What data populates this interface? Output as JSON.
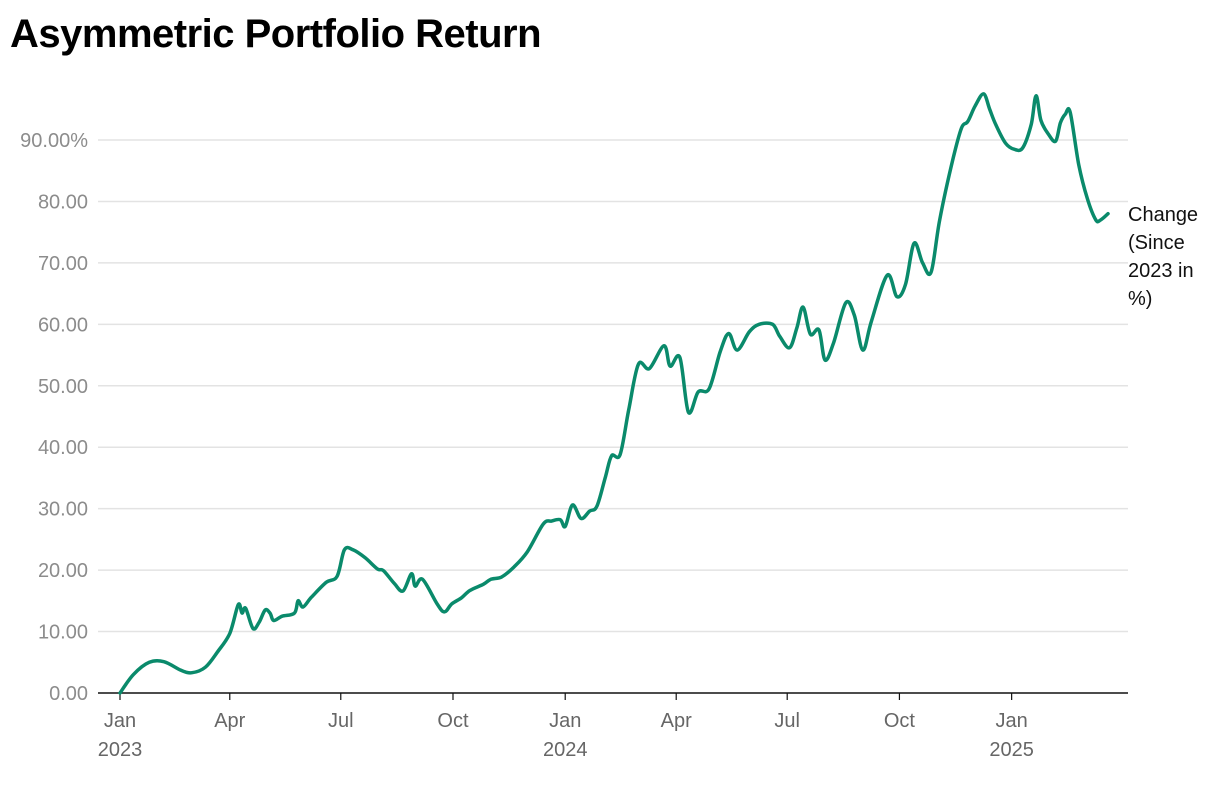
{
  "chart_data": {
    "type": "line",
    "title": "Asymmetric Portfolio Return",
    "xlabel": "",
    "ylabel": "",
    "ylim": [
      0,
      100
    ],
    "grid": true,
    "yticks": [
      {
        "value": 0,
        "label": "0.00"
      },
      {
        "value": 10,
        "label": "10.00"
      },
      {
        "value": 20,
        "label": "20.00"
      },
      {
        "value": 30,
        "label": "30.00"
      },
      {
        "value": 40,
        "label": "40.00"
      },
      {
        "value": 50,
        "label": "50.00"
      },
      {
        "value": 60,
        "label": "60.00"
      },
      {
        "value": 70,
        "label": "70.00"
      },
      {
        "value": 80,
        "label": "80.00"
      },
      {
        "value": 90,
        "label": "90.00%"
      }
    ],
    "xticks": [
      {
        "date": "2023-01-01",
        "label": "Jan",
        "year": "2023"
      },
      {
        "date": "2023-04-01",
        "label": "Apr",
        "year": ""
      },
      {
        "date": "2023-07-01",
        "label": "Jul",
        "year": ""
      },
      {
        "date": "2023-10-01",
        "label": "Oct",
        "year": ""
      },
      {
        "date": "2024-01-01",
        "label": "Jan",
        "year": "2024"
      },
      {
        "date": "2024-04-01",
        "label": "Apr",
        "year": ""
      },
      {
        "date": "2024-07-01",
        "label": "Jul",
        "year": ""
      },
      {
        "date": "2024-10-01",
        "label": "Oct",
        "year": ""
      },
      {
        "date": "2025-01-01",
        "label": "Jan",
        "year": "2025"
      }
    ],
    "series": [
      {
        "name": "Change (Since 2023 in %)",
        "color": "#0a8a6b",
        "points": [
          [
            "2023-01-01",
            0.0
          ],
          [
            "2023-01-12",
            3.0
          ],
          [
            "2023-01-25",
            5.0
          ],
          [
            "2023-02-06",
            5.1
          ],
          [
            "2023-02-20",
            3.7
          ],
          [
            "2023-03-01",
            3.3
          ],
          [
            "2023-03-12",
            4.2
          ],
          [
            "2023-03-22",
            6.7
          ],
          [
            "2023-04-01",
            9.7
          ],
          [
            "2023-04-08",
            14.4
          ],
          [
            "2023-04-11",
            13.0
          ],
          [
            "2023-04-14",
            13.8
          ],
          [
            "2023-04-20",
            10.5
          ],
          [
            "2023-04-25",
            11.5
          ],
          [
            "2023-04-30",
            13.5
          ],
          [
            "2023-05-04",
            13.0
          ],
          [
            "2023-05-07",
            11.8
          ],
          [
            "2023-05-14",
            12.5
          ],
          [
            "2023-05-24",
            13.0
          ],
          [
            "2023-05-27",
            15.0
          ],
          [
            "2023-05-31",
            14.0
          ],
          [
            "2023-06-07",
            15.6
          ],
          [
            "2023-06-19",
            18.0
          ],
          [
            "2023-06-28",
            19.0
          ],
          [
            "2023-07-04",
            23.3
          ],
          [
            "2023-07-11",
            23.3
          ],
          [
            "2023-07-21",
            22.0
          ],
          [
            "2023-07-31",
            20.2
          ],
          [
            "2023-08-05",
            19.9
          ],
          [
            "2023-08-14",
            17.8
          ],
          [
            "2023-08-21",
            16.6
          ],
          [
            "2023-08-28",
            19.4
          ],
          [
            "2023-08-31",
            17.4
          ],
          [
            "2023-09-06",
            18.5
          ],
          [
            "2023-09-18",
            14.5
          ],
          [
            "2023-09-24",
            13.2
          ],
          [
            "2023-09-30",
            14.5
          ],
          [
            "2023-10-08",
            15.5
          ],
          [
            "2023-10-15",
            16.7
          ],
          [
            "2023-10-26",
            17.7
          ],
          [
            "2023-11-01",
            18.5
          ],
          [
            "2023-11-10",
            18.9
          ],
          [
            "2023-11-20",
            20.5
          ],
          [
            "2023-12-01",
            23.0
          ],
          [
            "2023-12-14",
            27.5
          ],
          [
            "2023-12-21",
            28.0
          ],
          [
            "2023-12-28",
            28.2
          ],
          [
            "2024-01-01",
            27.1
          ],
          [
            "2024-01-07",
            30.6
          ],
          [
            "2024-01-14",
            28.4
          ],
          [
            "2024-01-21",
            29.6
          ],
          [
            "2024-01-27",
            30.4
          ],
          [
            "2024-02-03",
            35.2
          ],
          [
            "2024-02-08",
            38.6
          ],
          [
            "2024-02-15",
            38.8
          ],
          [
            "2024-02-22",
            46.0
          ],
          [
            "2024-03-01",
            53.5
          ],
          [
            "2024-03-10",
            52.8
          ],
          [
            "2024-03-22",
            56.5
          ],
          [
            "2024-03-27",
            53.2
          ],
          [
            "2024-04-04",
            54.6
          ],
          [
            "2024-04-11",
            45.7
          ],
          [
            "2024-04-19",
            49.0
          ],
          [
            "2024-04-28",
            49.5
          ],
          [
            "2024-05-07",
            55.5
          ],
          [
            "2024-05-14",
            58.5
          ],
          [
            "2024-05-21",
            55.8
          ],
          [
            "2024-05-31",
            58.8
          ],
          [
            "2024-06-08",
            60.0
          ],
          [
            "2024-06-19",
            60.0
          ],
          [
            "2024-06-25",
            58.0
          ],
          [
            "2024-07-03",
            56.2
          ],
          [
            "2024-07-09",
            59.5
          ],
          [
            "2024-07-14",
            62.8
          ],
          [
            "2024-07-20",
            58.4
          ],
          [
            "2024-07-27",
            59.1
          ],
          [
            "2024-08-01",
            54.2
          ],
          [
            "2024-08-08",
            57.0
          ],
          [
            "2024-08-18",
            63.5
          ],
          [
            "2024-08-25",
            61.5
          ],
          [
            "2024-09-01",
            55.8
          ],
          [
            "2024-09-08",
            60.5
          ],
          [
            "2024-09-21",
            68.0
          ],
          [
            "2024-09-29",
            64.5
          ],
          [
            "2024-10-06",
            66.5
          ],
          [
            "2024-10-13",
            73.2
          ],
          [
            "2024-10-20",
            70.0
          ],
          [
            "2024-10-27",
            68.5
          ],
          [
            "2024-11-03",
            77.0
          ],
          [
            "2024-11-14",
            87.0
          ],
          [
            "2024-11-21",
            92.0
          ],
          [
            "2024-11-26",
            93.0
          ],
          [
            "2024-12-02",
            95.5
          ],
          [
            "2024-12-09",
            97.5
          ],
          [
            "2024-12-14",
            95.0
          ],
          [
            "2024-12-19",
            92.5
          ],
          [
            "2024-12-27",
            89.5
          ],
          [
            "2025-01-03",
            88.5
          ],
          [
            "2025-01-10",
            88.7
          ],
          [
            "2025-01-17",
            92.5
          ],
          [
            "2025-01-21",
            97.2
          ],
          [
            "2025-01-25",
            93.2
          ],
          [
            "2025-01-31",
            91.0
          ],
          [
            "2025-02-06",
            89.8
          ],
          [
            "2025-02-10",
            92.8
          ],
          [
            "2025-02-14",
            94.2
          ],
          [
            "2025-02-18",
            94.5
          ],
          [
            "2025-02-25",
            86.0
          ],
          [
            "2025-03-04",
            80.5
          ],
          [
            "2025-03-11",
            77.0
          ],
          [
            "2025-03-15",
            77.0
          ],
          [
            "2025-03-21",
            78.0
          ]
        ]
      }
    ]
  }
}
